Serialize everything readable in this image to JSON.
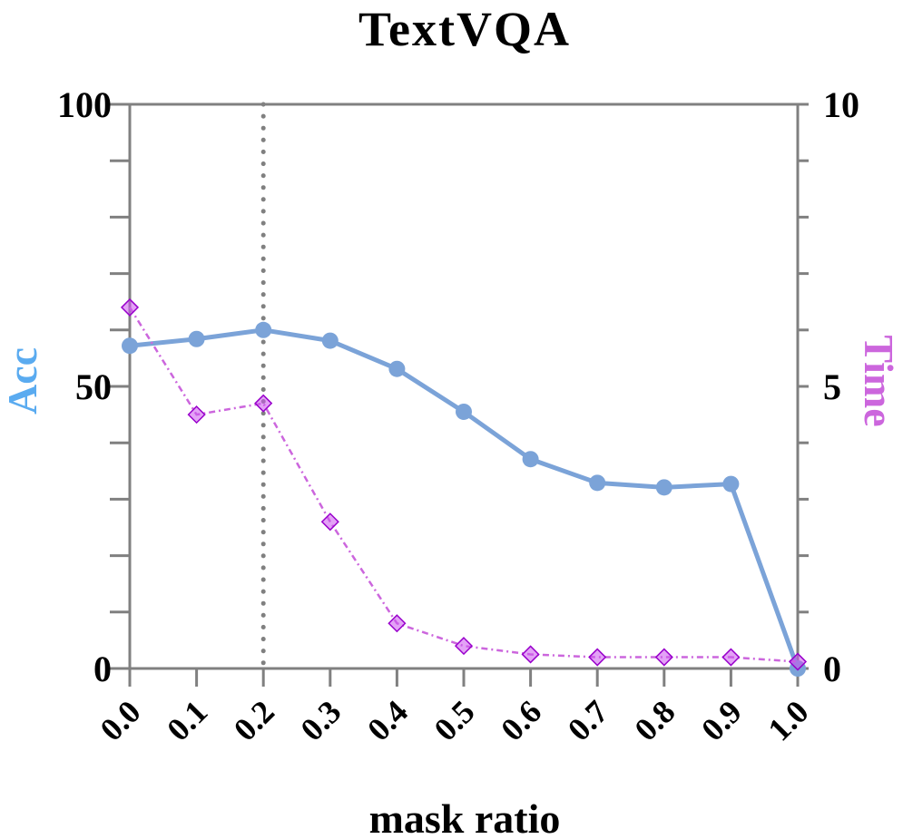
{
  "chart_data": {
    "type": "line",
    "title": "TextVQA",
    "xlabel": "mask ratio",
    "ylabel_left": "Acc",
    "ylabel_right": "Time",
    "x": [
      0.0,
      0.1,
      0.2,
      0.3,
      0.4,
      0.5,
      0.6,
      0.7,
      0.8,
      0.9,
      1.0
    ],
    "x_tick_labels": [
      "0.0",
      "0.1",
      "0.2",
      "0.3",
      "0.4",
      "0.5",
      "0.6",
      "0.7",
      "0.8",
      "0.9",
      "1.0"
    ],
    "ylim_left": [
      0,
      100
    ],
    "ylim_right": [
      0,
      10
    ],
    "y_ticks_left": [
      0,
      50,
      100
    ],
    "y_ticks_right": [
      0,
      5,
      10
    ],
    "y_minor_step_left": 10,
    "y_minor_step_right": 1,
    "reference_line_x": 0.2,
    "series": [
      {
        "axis": "left",
        "values": [
          57.2,
          58.4,
          60.0,
          58.1,
          53.1,
          45.5,
          37.1,
          32.9,
          32.1,
          32.7,
          0.0
        ],
        "color": "#7ba3d8",
        "line_style": "solid",
        "marker": "circle"
      },
      {
        "axis": "right",
        "values": [
          6.4,
          4.5,
          4.7,
          2.6,
          0.8,
          0.4,
          0.25,
          0.2,
          0.2,
          0.2,
          0.12
        ],
        "color": "#cc66dd",
        "marker_fill": "#cc55ee",
        "marker_edge": "#9900cc",
        "line_style": "dashdot",
        "marker": "diamond"
      }
    ],
    "colors": {
      "acc_label": "#5aabf0",
      "time_label": "#cc66dd",
      "axis": "#808080",
      "reference_line": "#808080"
    },
    "grid": false
  }
}
